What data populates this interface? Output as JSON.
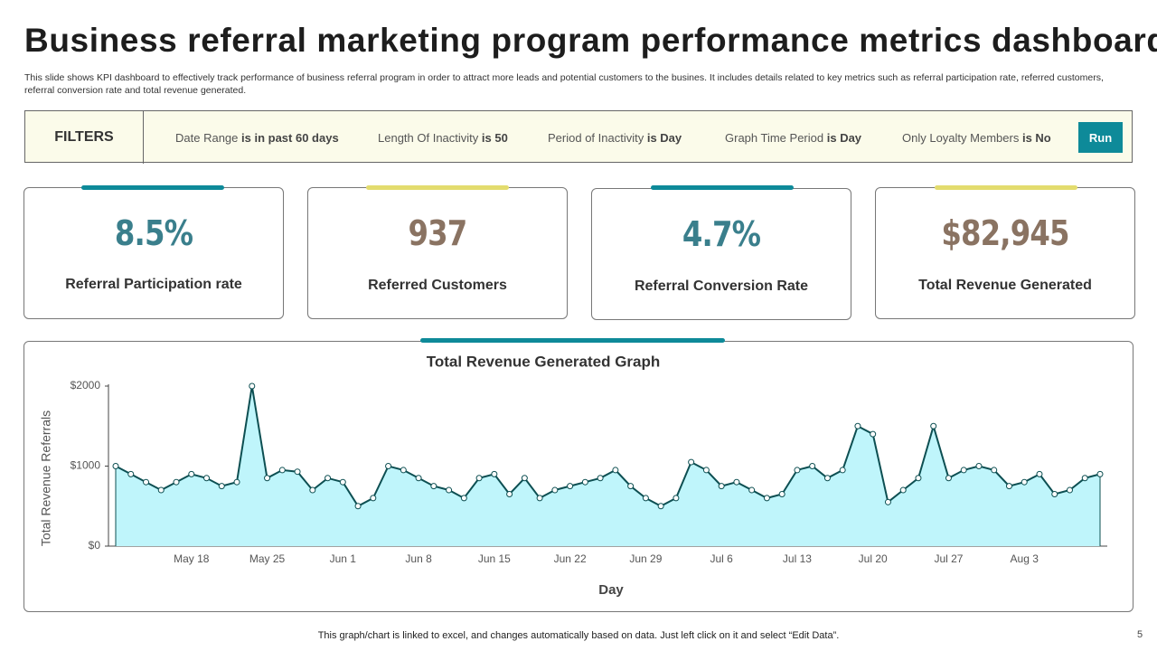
{
  "header": {
    "title": "Business referral marketing program performance metrics dashboard",
    "description": "This slide shows KPI dashboard to effectively track performance of business referral program in order to attract more leads and potential customers to the busines. It includes details related to key metrics such as referral participation rate, referred customers, referral conversion rate and total revenue generated."
  },
  "filters": {
    "label": "FILTERS",
    "items": [
      {
        "name": "Date Range",
        "value": "is in past 60 days"
      },
      {
        "name": "Length Of Inactivity",
        "value": "is 50"
      },
      {
        "name": "Period of Inactivity",
        "value": "is Day"
      },
      {
        "name": "Graph Time Period",
        "value": "is Day"
      },
      {
        "name": "Only Loyalty Members",
        "value": "is No"
      }
    ],
    "button": "Run"
  },
  "kpis": [
    {
      "value": "8.5%",
      "label": "Referral Participation rate"
    },
    {
      "value": "937",
      "label": "Referred Customers"
    },
    {
      "value": "4.7%",
      "label": "Referral Conversion Rate"
    },
    {
      "value": "$82,945",
      "label": "Total Revenue Generated"
    }
  ],
  "chart_data": {
    "type": "area",
    "title": "Total Revenue Generated Graph",
    "x_label": "Day",
    "y_label": "Total Revenue  Referrals",
    "categories": [
      null,
      null,
      null,
      null,
      null,
      "May 18",
      null,
      null,
      null,
      null,
      "May 25",
      null,
      null,
      null,
      null,
      "Jun 1",
      null,
      null,
      null,
      null,
      "Jun 8",
      null,
      null,
      null,
      null,
      "Jun 15",
      null,
      null,
      null,
      null,
      "Jun 22",
      null,
      null,
      null,
      null,
      "Jun 29",
      null,
      null,
      null,
      null,
      "Jul 6",
      null,
      null,
      null,
      null,
      "Jul 13",
      null,
      null,
      null,
      null,
      "Jul 20",
      null,
      null,
      null,
      null,
      "Jul 27",
      null,
      null,
      null,
      null,
      "Aug 3",
      null,
      null,
      null,
      null,
      null
    ],
    "series": [
      {
        "name": "Total Revenue",
        "color": "#0d4f52",
        "fill": "#bff5fb",
        "values": [
          1000,
          900,
          800,
          700,
          800,
          900,
          850,
          750,
          800,
          2000,
          850,
          950,
          930,
          700,
          850,
          800,
          500,
          600,
          1000,
          950,
          850,
          750,
          700,
          600,
          850,
          900,
          650,
          850,
          600,
          700,
          750,
          800,
          850,
          950,
          750,
          600,
          500,
          600,
          1050,
          950,
          750,
          800,
          700,
          600,
          650,
          950,
          1000,
          850,
          950,
          1500,
          1400,
          550,
          700,
          850,
          1500,
          850,
          950,
          1000,
          950,
          750,
          800,
          900,
          650,
          700,
          850,
          900
        ]
      }
    ],
    "ylim": [
      0,
      2000
    ],
    "yticks": [
      {
        "value": 0,
        "label": "$0"
      },
      {
        "value": 1000,
        "label": "$1000"
      },
      {
        "value": 2000,
        "label": "$2000"
      }
    ]
  },
  "footer": {
    "note": "This graph/chart is linked to excel,  and changes automatically based on data. Just left click on it and select “Edit Data”.",
    "page": "5"
  }
}
